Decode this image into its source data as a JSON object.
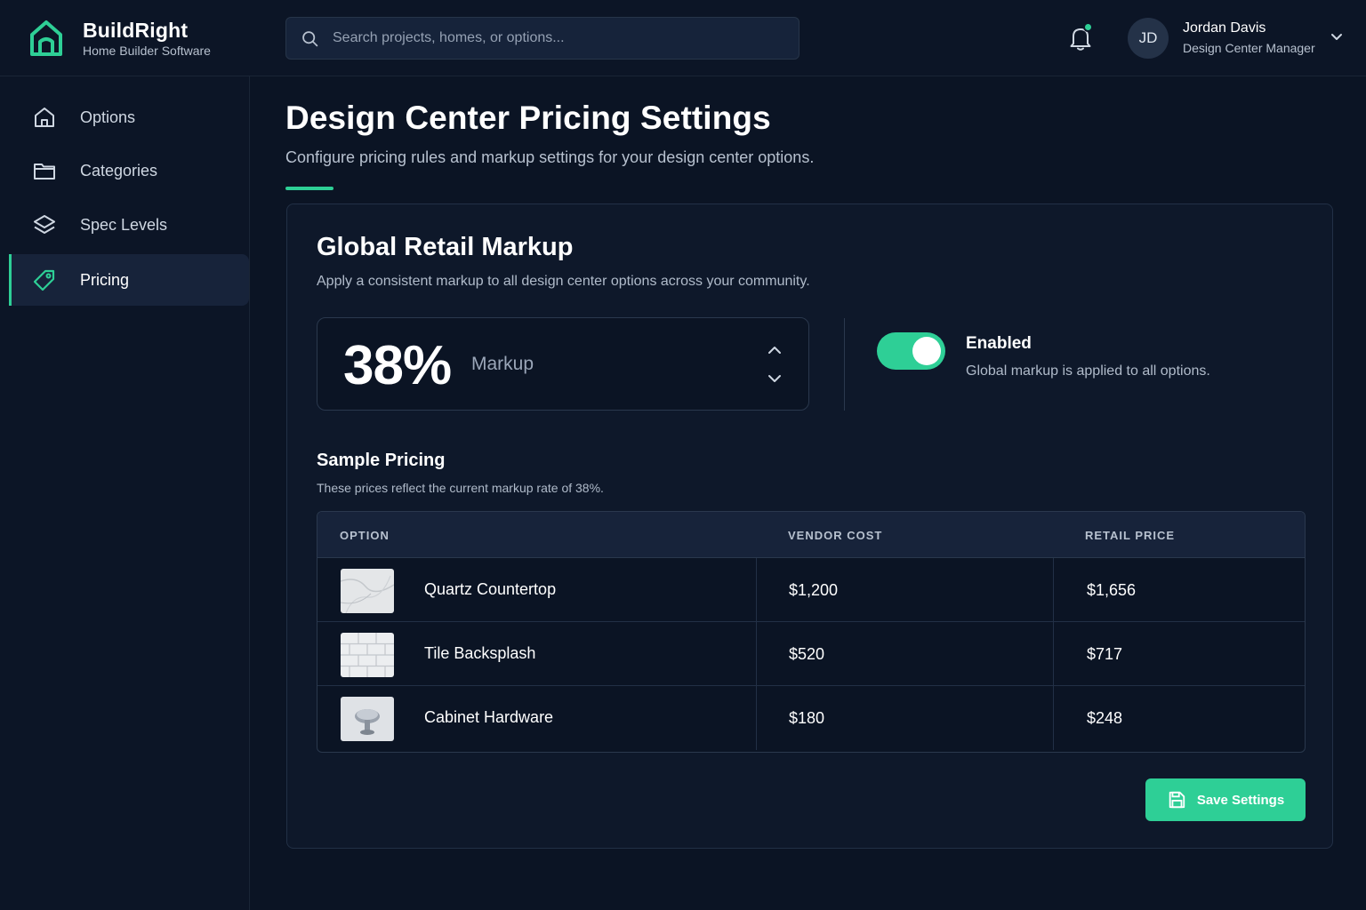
{
  "brand": {
    "name": "BuildRight",
    "subtitle": "Home Builder Software",
    "logo_icon": "house-logo-icon",
    "accent_color": "#2ecf96"
  },
  "search": {
    "placeholder": "Search projects, homes, or options...",
    "value": ""
  },
  "notifications": {
    "has_unread": true
  },
  "user": {
    "initials": "JD",
    "name": "Jordan Davis",
    "role": "Design Center Manager"
  },
  "sidebar": {
    "items": [
      {
        "label": "Options",
        "icon": "home-icon",
        "active": false
      },
      {
        "label": "Categories",
        "icon": "folder-icon",
        "active": false
      },
      {
        "label": "Spec Levels",
        "icon": "layers-icon",
        "active": false
      },
      {
        "label": "Pricing",
        "icon": "tag-icon",
        "active": true
      }
    ]
  },
  "page": {
    "title": "Design Center Pricing Settings",
    "subtitle": "Configure pricing rules and markup settings for your design center options."
  },
  "markup": {
    "title": "Global Retail Markup",
    "description": "Apply a consistent markup to all design center options across your community.",
    "value": "38%",
    "label": "Markup",
    "enabled": true,
    "toggle_title": "Enabled",
    "toggle_description": "Global markup is applied to all options."
  },
  "sample": {
    "title": "Sample Pricing",
    "description": "These prices reflect the current markup rate of 38%.",
    "headers": [
      "OPTION",
      "VENDOR COST",
      "RETAIL PRICE"
    ],
    "rows": [
      {
        "option": "Quartz Countertop",
        "vendor_cost": "$1,200",
        "retail_price": "$1,656",
        "thumb": "quartz-thumbnail"
      },
      {
        "option": "Tile Backsplash",
        "vendor_cost": "$520",
        "retail_price": "$717",
        "thumb": "tile-thumbnail"
      },
      {
        "option": "Cabinet Hardware",
        "vendor_cost": "$180",
        "retail_price": "$248",
        "thumb": "knob-thumbnail"
      }
    ]
  },
  "actions": {
    "save_label": "Save Settings"
  }
}
